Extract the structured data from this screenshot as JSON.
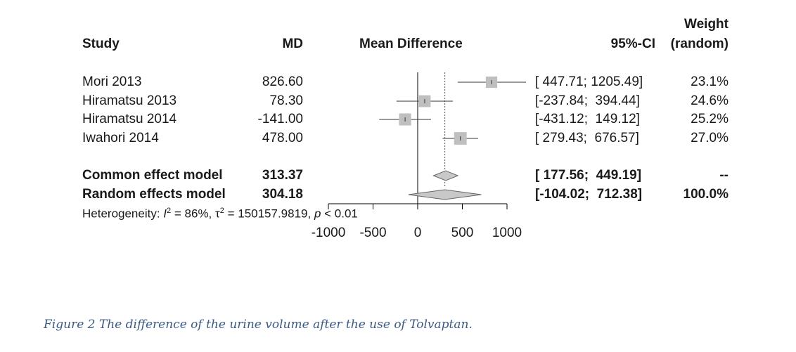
{
  "headers": {
    "study": "Study",
    "md": "MD",
    "mean_difference": "Mean Difference",
    "ci": "95%-CI",
    "weight_line1": "Weight",
    "weight_line2": "(random)"
  },
  "heterogeneity": {
    "prefix": "Heterogeneity: ",
    "i_symbol": "I",
    "i_value": " = 86%, ",
    "tau_symbol": "τ",
    "tau_value": " = 150157.9819, ",
    "p_symbol": "p",
    "p_value": " < 0.01"
  },
  "caption": "Figure 2 The difference of the urine volume after the use of Tolvaptan.",
  "chart_data": {
    "type": "forest",
    "title": "Mean Difference",
    "xlim": [
      -1000,
      1000
    ],
    "xticks": [
      "-1000",
      "-500",
      "0",
      "500",
      "1000"
    ],
    "xtick_values": [
      -1000,
      -500,
      0,
      500,
      1000
    ],
    "studies": [
      {
        "name": "Mori 2013",
        "md": 826.6,
        "md_label": "826.60",
        "ci_low": 447.71,
        "ci_high": 1205.49,
        "ci_label": "[ 447.71; 1205.49]",
        "weight": 23.1,
        "weight_label": "23.1%"
      },
      {
        "name": "Hiramatsu 2013",
        "md": 78.3,
        "md_label": "78.30",
        "ci_low": -237.84,
        "ci_high": 394.44,
        "ci_label": "[-237.84;  394.44]",
        "weight": 24.6,
        "weight_label": "24.6%"
      },
      {
        "name": "Hiramatsu 2014",
        "md": -141.0,
        "md_label": "-141.00",
        "ci_low": -431.12,
        "ci_high": 149.12,
        "ci_label": "[-431.12;  149.12]",
        "weight": 25.2,
        "weight_label": "25.2%"
      },
      {
        "name": "Iwahori 2014",
        "md": 478.0,
        "md_label": "478.00",
        "ci_low": 279.43,
        "ci_high": 676.57,
        "ci_label": "[ 279.43;  676.57]",
        "weight": 27.0,
        "weight_label": "27.0%"
      }
    ],
    "summaries": [
      {
        "name": "Common effect model",
        "md": 313.37,
        "md_label": "313.37",
        "ci_low": 177.56,
        "ci_high": 449.19,
        "ci_label": "[ 177.56;  449.19]",
        "weight_label": "--"
      },
      {
        "name": "Random effects model",
        "md": 304.18,
        "md_label": "304.18",
        "ci_low": -104.02,
        "ci_high": 712.38,
        "ci_label": "[-104.02;  712.38]",
        "weight_label": "100.0%"
      }
    ],
    "null_line": 0,
    "summary_line": 304.18,
    "colors": {
      "square": "#bfbfbf",
      "diamond": "#c8c8c8",
      "line": "#333333"
    }
  }
}
